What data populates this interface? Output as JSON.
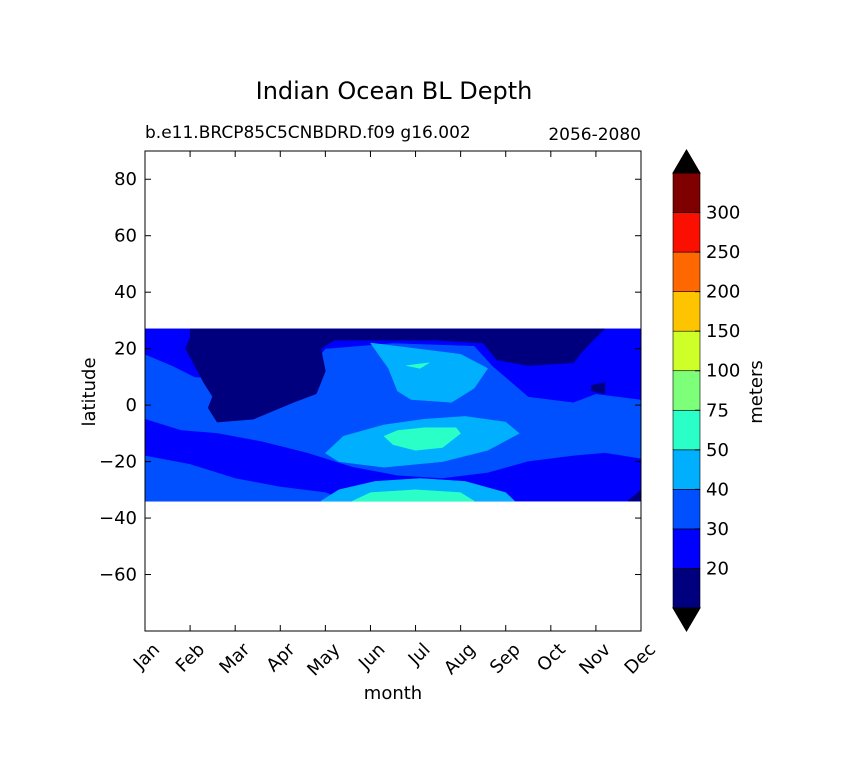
{
  "chart_data": {
    "type": "contour",
    "title": "Indian Ocean BL Depth",
    "subtitle_left": "b.e11.BRCP85C5CNBDRD.f09 g16.002",
    "subtitle_right": "2056-2080",
    "xlabel": "month",
    "ylabel": "latitude",
    "x_ticks": [
      "Jan",
      "Feb",
      "Mar",
      "Apr",
      "May",
      "Jun",
      "Jul",
      "Aug",
      "Sep",
      "Oct",
      "Nov",
      "Dec"
    ],
    "xlim": [
      0,
      11
    ],
    "ylim": [
      -80,
      90
    ],
    "y_ticks": [
      80,
      60,
      40,
      20,
      0,
      -20,
      -40,
      -60
    ],
    "y_tick_labels": [
      "80",
      "60",
      "40",
      "20",
      "0",
      "−20",
      "−40",
      "−60"
    ],
    "data_lat_range": [
      -34,
      27
    ],
    "colorbar": {
      "label": "meters",
      "levels": [
        20,
        30,
        40,
        50,
        75,
        100,
        150,
        200,
        250,
        300
      ],
      "level_labels": [
        "20",
        "30",
        "40",
        "50",
        "75",
        "100",
        "150",
        "200",
        "250",
        "300"
      ],
      "colors": [
        "#00007f",
        "#0000ff",
        "#0050ff",
        "#00b0ff",
        "#29ffc6",
        "#7dff7a",
        "#ceff29",
        "#ffc400",
        "#ff6700",
        "#fa0f00",
        "#7f0000"
      ],
      "extend": "both",
      "extend_colors": [
        "#000000",
        "#000000"
      ]
    },
    "regions": [
      {
        "name": "background-30-40",
        "level": "30-40",
        "color": "#0050ff",
        "points": [
          [
            0,
            27
          ],
          [
            11,
            27
          ],
          [
            11,
            -34
          ],
          [
            0,
            -34
          ]
        ]
      },
      {
        "name": "north-20-30",
        "level": "20-30",
        "color": "#0000ff",
        "points": [
          [
            0,
            27
          ],
          [
            11,
            27
          ],
          [
            11,
            2
          ],
          [
            10,
            4
          ],
          [
            9.5,
            1
          ],
          [
            8.5,
            3
          ],
          [
            7.7,
            14
          ],
          [
            7.3,
            21
          ],
          [
            5.5,
            22
          ],
          [
            4,
            20
          ],
          [
            3.5,
            10
          ],
          [
            2.6,
            6
          ],
          [
            2,
            9
          ],
          [
            1.1,
            10
          ],
          [
            0.6,
            14
          ],
          [
            0,
            18
          ]
        ]
      },
      {
        "name": "north-lt-20",
        "level": "<20",
        "color": "#00007f",
        "points": [
          [
            1.0,
            27
          ],
          [
            10.2,
            27
          ],
          [
            10,
            24
          ],
          [
            9.7,
            19
          ],
          [
            9.5,
            15
          ],
          [
            8.5,
            14
          ],
          [
            7.8,
            16
          ],
          [
            7.5,
            22
          ],
          [
            6.5,
            23
          ],
          [
            5.6,
            23
          ],
          [
            4.2,
            23
          ],
          [
            3.9,
            20
          ],
          [
            4.0,
            12
          ],
          [
            3.8,
            4
          ],
          [
            3.3,
            1
          ],
          [
            2.4,
            -5
          ],
          [
            1.6,
            -6
          ],
          [
            1.4,
            -1
          ],
          [
            1.5,
            3
          ],
          [
            1.3,
            8
          ],
          [
            1.1,
            14
          ],
          [
            0.9,
            20
          ],
          [
            1.0,
            24
          ]
        ]
      },
      {
        "name": "nov-lt-20-patch",
        "level": "<20",
        "color": "#00007f",
        "points": [
          [
            9.9,
            7
          ],
          [
            10.2,
            8
          ],
          [
            10.2,
            4
          ],
          [
            9.9,
            5
          ]
        ]
      },
      {
        "name": "south-20-30",
        "level": "20-30",
        "color": "#0000ff",
        "points": [
          [
            0,
            -5
          ],
          [
            0.8,
            -9
          ],
          [
            1.6,
            -10
          ],
          [
            2.6,
            -13
          ],
          [
            3.6,
            -17
          ],
          [
            4.6,
            -22
          ],
          [
            5.6,
            -25
          ],
          [
            6.6,
            -26
          ],
          [
            7.6,
            -24
          ],
          [
            8.5,
            -20
          ],
          [
            9.5,
            -18
          ],
          [
            10.2,
            -17
          ],
          [
            11,
            -19
          ],
          [
            11,
            -34
          ],
          [
            0,
            -34
          ]
        ]
      },
      {
        "name": "southwest-30-40",
        "level": "30-40",
        "color": "#0050ff",
        "points": [
          [
            0,
            -18
          ],
          [
            1,
            -21
          ],
          [
            2,
            -26
          ],
          [
            3,
            -29
          ],
          [
            4,
            -31
          ],
          [
            4.5,
            -34
          ],
          [
            0,
            -34
          ]
        ]
      },
      {
        "name": "se-corner-lt-20",
        "level": "<20",
        "color": "#00007f",
        "points": [
          [
            10.7,
            -34
          ],
          [
            11,
            -30
          ],
          [
            11,
            -34
          ]
        ]
      },
      {
        "name": "center-40-50",
        "level": "40-50",
        "color": "#00b0ff",
        "points": [
          [
            4.0,
            -17
          ],
          [
            4.4,
            -11
          ],
          [
            5.3,
            -7
          ],
          [
            6.2,
            -5
          ],
          [
            7.1,
            -4
          ],
          [
            8.0,
            -6
          ],
          [
            8.3,
            -10
          ],
          [
            7.6,
            -16
          ],
          [
            6.6,
            -20
          ],
          [
            5.3,
            -22
          ],
          [
            4.3,
            -20
          ]
        ]
      },
      {
        "name": "center-50-75",
        "level": "50-75",
        "color": "#29ffc6",
        "points": [
          [
            5.3,
            -11
          ],
          [
            5.6,
            -9
          ],
          [
            6.2,
            -8
          ],
          [
            6.9,
            -8
          ],
          [
            7.0,
            -10
          ],
          [
            6.6,
            -15
          ],
          [
            6.0,
            -16
          ],
          [
            5.5,
            -14
          ]
        ]
      },
      {
        "name": "north-40-50-band",
        "level": "40-50",
        "color": "#00b0ff",
        "points": [
          [
            5.0,
            22
          ],
          [
            5.4,
            13
          ],
          [
            5.6,
            5
          ],
          [
            5.9,
            2
          ],
          [
            6.8,
            1
          ],
          [
            7.3,
            6
          ],
          [
            7.6,
            13
          ],
          [
            7.0,
            18
          ],
          [
            6.0,
            20
          ]
        ]
      },
      {
        "name": "north-50-75-spot",
        "level": "50-75",
        "color": "#29ffc6",
        "points": [
          [
            5.8,
            14
          ],
          [
            6.3,
            15
          ],
          [
            6.1,
            13
          ]
        ]
      },
      {
        "name": "south-40-50-bottom",
        "level": "40-50",
        "color": "#00b0ff",
        "points": [
          [
            3.9,
            -34
          ],
          [
            4.3,
            -30
          ],
          [
            5.1,
            -27
          ],
          [
            6.1,
            -26
          ],
          [
            7.1,
            -27
          ],
          [
            8.0,
            -31
          ],
          [
            8.2,
            -34
          ]
        ]
      },
      {
        "name": "south-50-75-bottom",
        "level": "50-75",
        "color": "#29ffc6",
        "points": [
          [
            4.6,
            -34
          ],
          [
            5.0,
            -31
          ],
          [
            6.0,
            -30
          ],
          [
            7.0,
            -31
          ],
          [
            7.3,
            -34
          ]
        ]
      }
    ]
  }
}
